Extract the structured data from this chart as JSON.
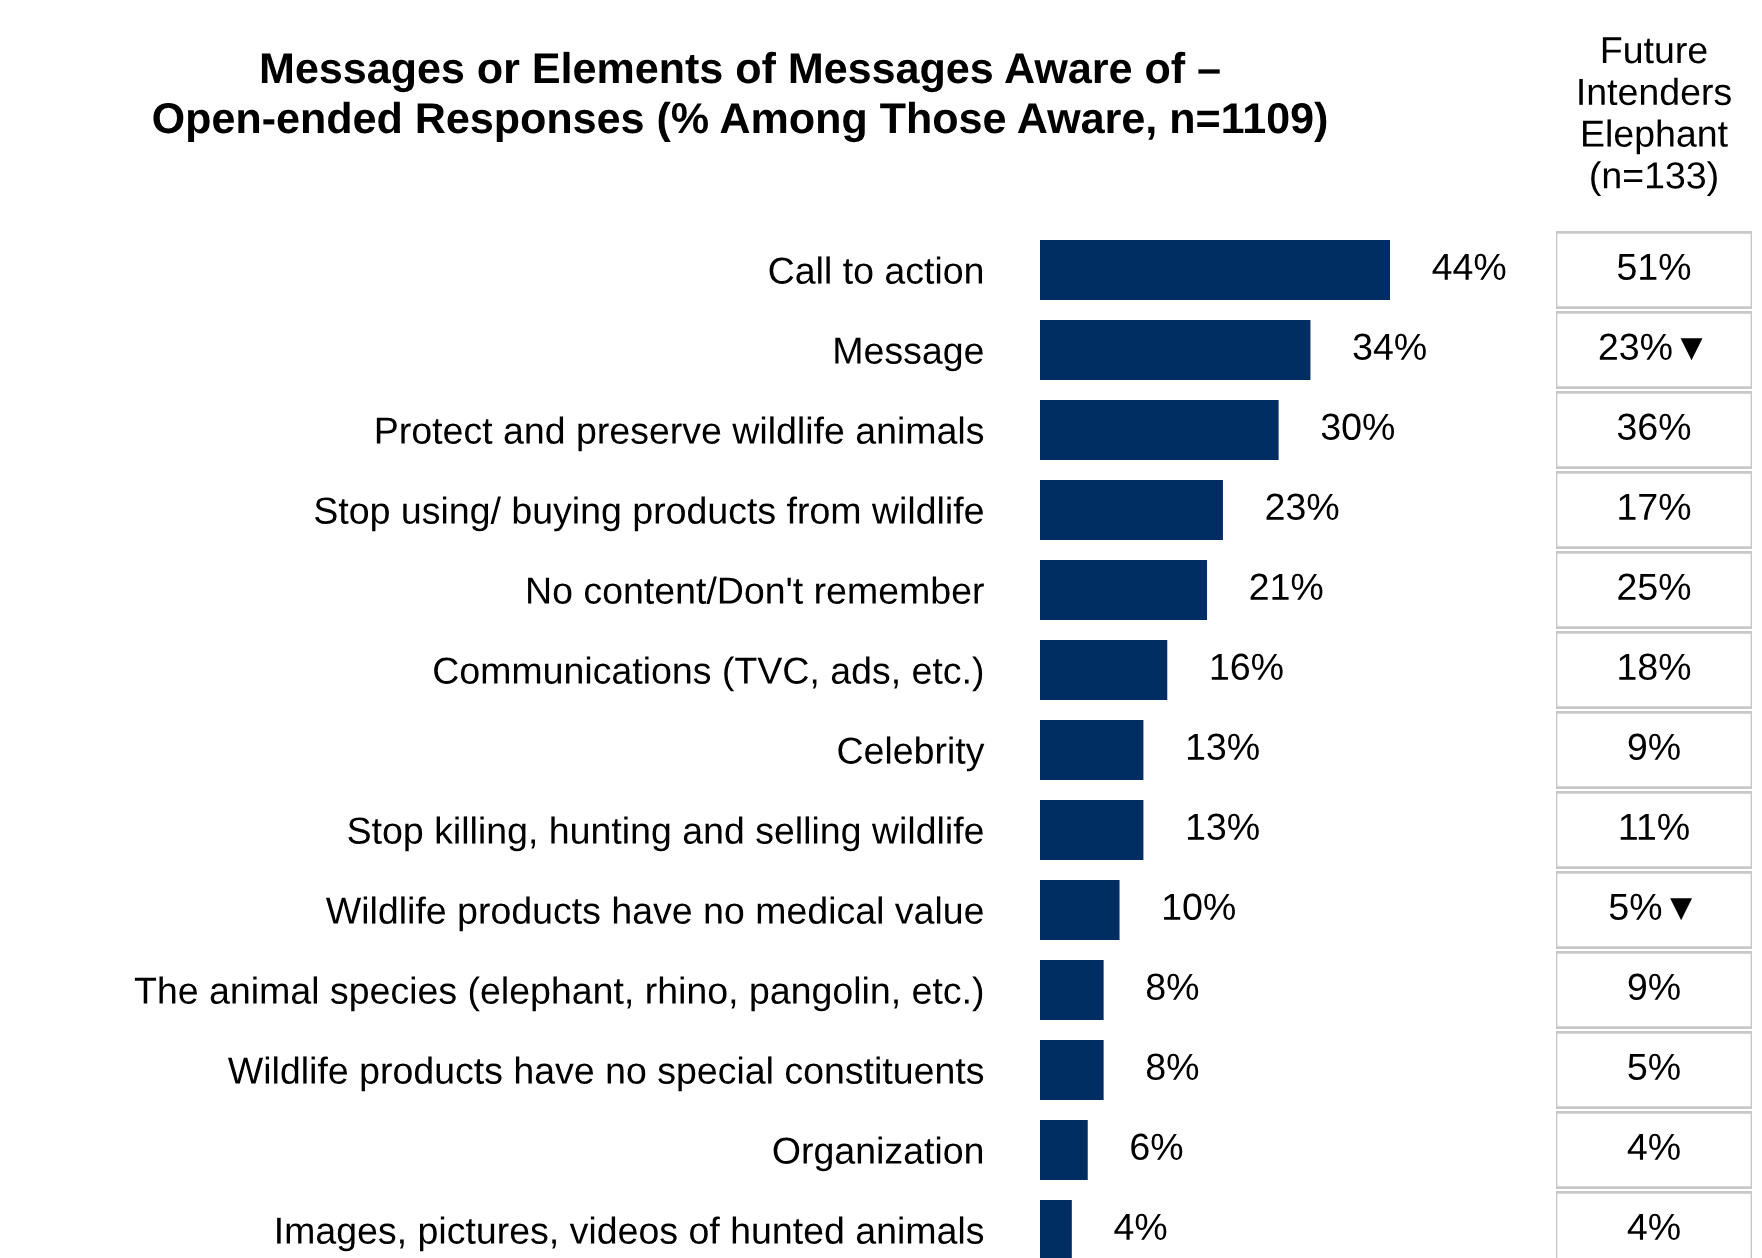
{
  "chart_data": [
    {
      "type": "bar",
      "orientation": "horizontal",
      "title": "Messages or Elements of Messages Aware of –",
      "subtitle": "Open-ended Responses (% Among Those Aware, n=1109)",
      "categories": [
        "Call to action",
        "Message",
        "Protect and preserve wildlife animals",
        "Stop using/ buying products from wildlife",
        "No content/Don't remember",
        "Communications (TVC, ads, etc.)",
        "Celebrity",
        "Stop killing, hunting and selling wildlife",
        "Wildlife products have no medical value",
        "The animal species (elephant, rhino, pangolin, etc.)",
        "Wildlife products have no special constituents",
        "Organization",
        "Images, pictures, videos of hunted animals"
      ],
      "values": [
        44,
        34,
        30,
        23,
        21,
        16,
        13,
        13,
        10,
        8,
        8,
        6,
        4
      ],
      "color": "#002d62",
      "value_labels": [
        "44%",
        "34%",
        "30%",
        "23%",
        "21%",
        "16%",
        "13%",
        "13%",
        "10%",
        "8%",
        "8%",
        "6%",
        "4%"
      ]
    },
    {
      "type": "other",
      "title": "Future\nIntenders\nElephant\n(n=133)",
      "categories": [
        null,
        null,
        null,
        null,
        null,
        null,
        null,
        null,
        null,
        null,
        null,
        null,
        null
      ],
      "values": [
        51,
        23,
        36,
        17,
        25,
        18,
        9,
        11,
        5,
        9,
        5,
        4,
        4
      ],
      "value_labels": [
        "51%",
        "23%▼",
        "36%",
        "17%",
        "25%",
        "18%",
        "9%",
        "11%",
        "5%▼",
        "9%",
        "5%",
        "4%",
        "4%"
      ]
    }
  ]
}
